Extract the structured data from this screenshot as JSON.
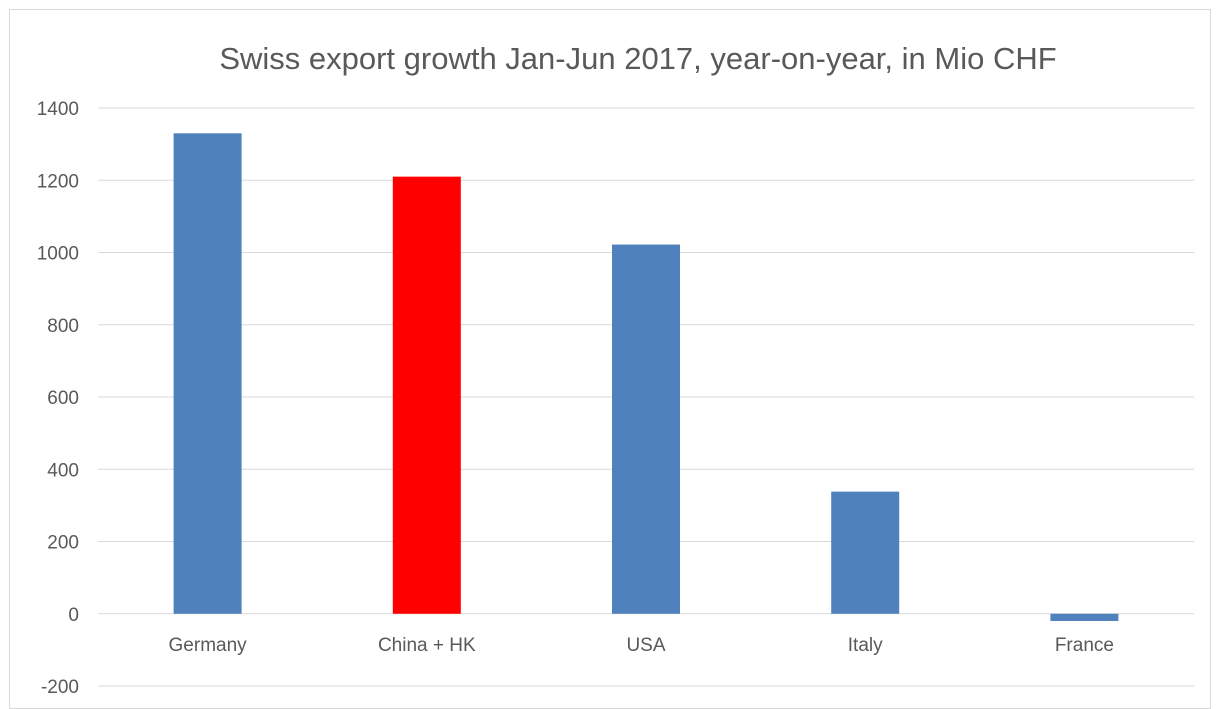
{
  "chart_data": {
    "type": "bar",
    "title": "Swiss export growth Jan-Jun 2017, year-on-year, in Mio CHF",
    "xlabel": "",
    "ylabel": "",
    "categories": [
      "Germany",
      "China + HK",
      "USA",
      "Italy",
      "France"
    ],
    "values": [
      1330,
      1210,
      1022,
      338,
      -20
    ],
    "bar_colors": [
      "#4f81bd",
      "#ff0000",
      "#4f81bd",
      "#4f81bd",
      "#4f81bd"
    ],
    "ylim": [
      -200,
      1400
    ],
    "yticks": [
      1400,
      1200,
      1000,
      800,
      600,
      400,
      200,
      0,
      -200
    ],
    "grid": true,
    "legend": "none"
  }
}
